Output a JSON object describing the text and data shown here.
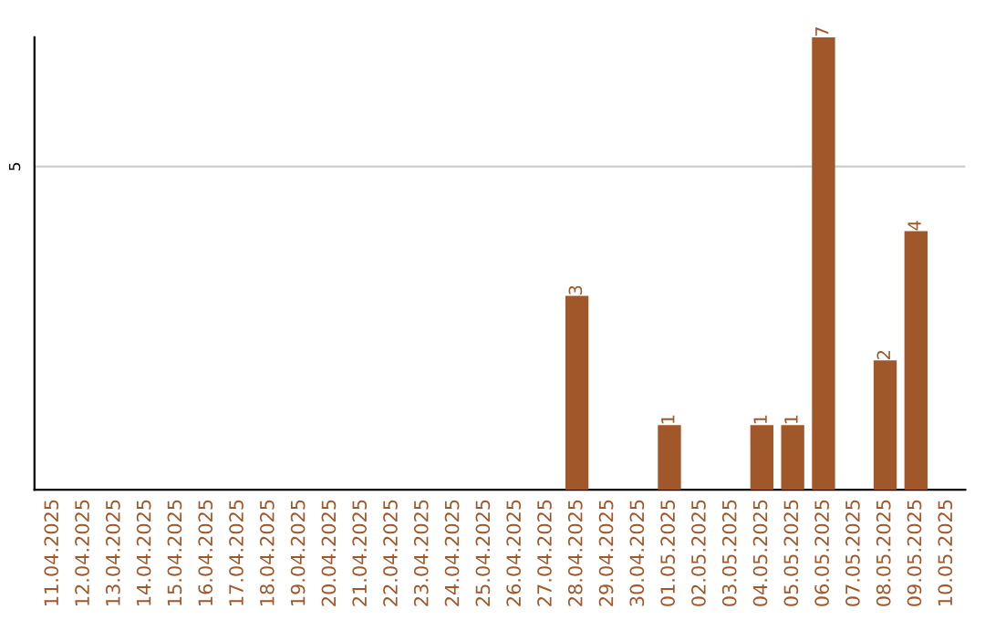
{
  "chart_data": {
    "type": "bar",
    "categories": [
      "11.04.2025",
      "12.04.2025",
      "13.04.2025",
      "14.04.2025",
      "15.04.2025",
      "16.04.2025",
      "17.04.2025",
      "18.04.2025",
      "19.04.2025",
      "20.04.2025",
      "21.04.2025",
      "22.04.2025",
      "23.04.2025",
      "24.04.2025",
      "25.04.2025",
      "26.04.2025",
      "27.04.2025",
      "28.04.2025",
      "29.04.2025",
      "30.04.2025",
      "01.05.2025",
      "02.05.2025",
      "03.05.2025",
      "04.05.2025",
      "05.05.2025",
      "06.05.2025",
      "07.05.2025",
      "08.05.2025",
      "09.05.2025",
      "10.05.2025"
    ],
    "values": [
      null,
      null,
      null,
      null,
      null,
      null,
      null,
      null,
      null,
      null,
      null,
      null,
      null,
      null,
      null,
      null,
      null,
      3,
      null,
      null,
      1,
      null,
      null,
      1,
      1,
      7,
      null,
      2,
      4,
      null
    ],
    "ylim": [
      0,
      7
    ],
    "color": "#a0582a",
    "ref_lines": [
      {
        "axis": "y",
        "value": 5,
        "label": "5",
        "color": "#cccccc"
      }
    ],
    "data_labels": true
  }
}
